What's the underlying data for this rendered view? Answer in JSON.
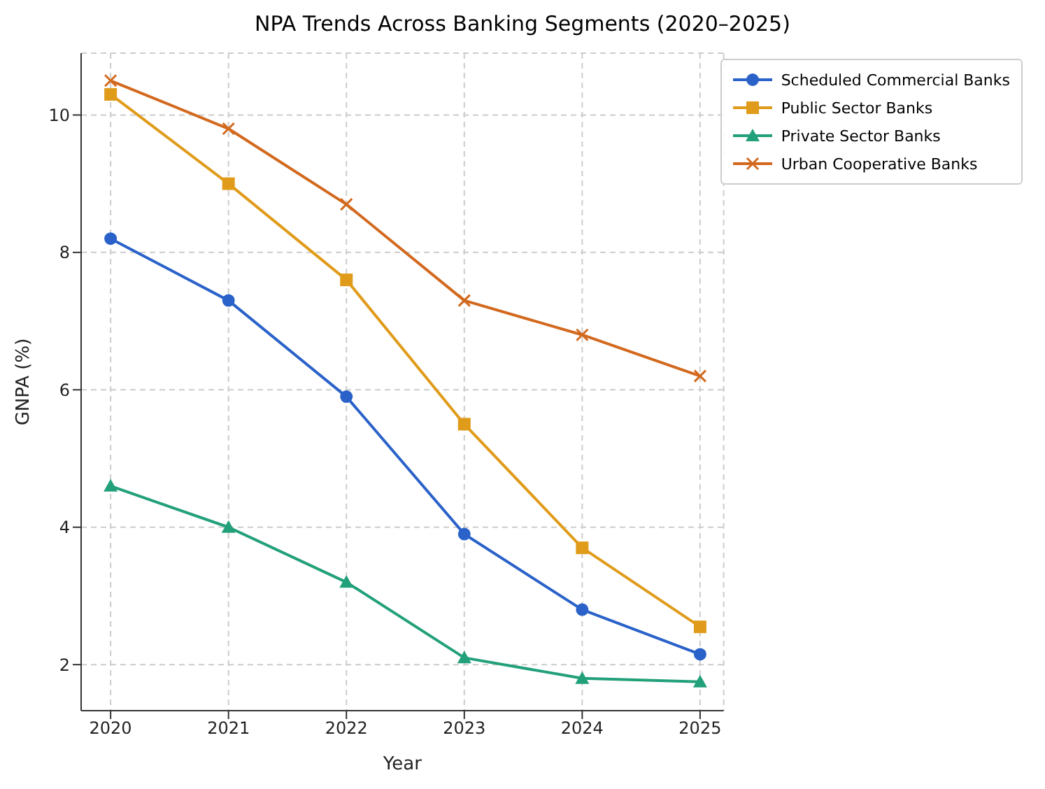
{
  "chart_data": {
    "type": "line",
    "title": "NPA Trends Across Banking Segments (2020–2025)",
    "xlabel": "Year",
    "ylabel": "GNPA (%)",
    "x": [
      2020,
      2021,
      2022,
      2023,
      2024,
      2025
    ],
    "xlim": [
      2019.75,
      2025.2
    ],
    "xticks": [
      2020,
      2021,
      2022,
      2023,
      2024,
      2025
    ],
    "ylim": [
      1.33,
      10.9
    ],
    "yticks": [
      2,
      4,
      6,
      8,
      10
    ],
    "grid": true,
    "legend": "top right",
    "line_style": "solid",
    "series": [
      {
        "name": "Scheduled Commercial Banks",
        "color": "#2a62c9",
        "marker": "circle",
        "values": [
          8.2,
          7.3,
          5.9,
          3.9,
          2.8,
          2.15
        ]
      },
      {
        "name": "Public Sector Banks",
        "color": "#e09b1a",
        "marker": "square",
        "values": [
          10.3,
          9.0,
          7.6,
          5.5,
          3.7,
          2.55
        ]
      },
      {
        "name": "Private Sector Banks",
        "color": "#22a07a",
        "marker": "triangle",
        "values": [
          4.6,
          4.0,
          3.2,
          2.1,
          1.8,
          1.75
        ]
      },
      {
        "name": "Urban Cooperative Banks",
        "color": "#d2691e",
        "marker": "cross",
        "values": [
          10.5,
          9.8,
          8.7,
          7.3,
          6.8,
          6.2
        ]
      }
    ]
  }
}
